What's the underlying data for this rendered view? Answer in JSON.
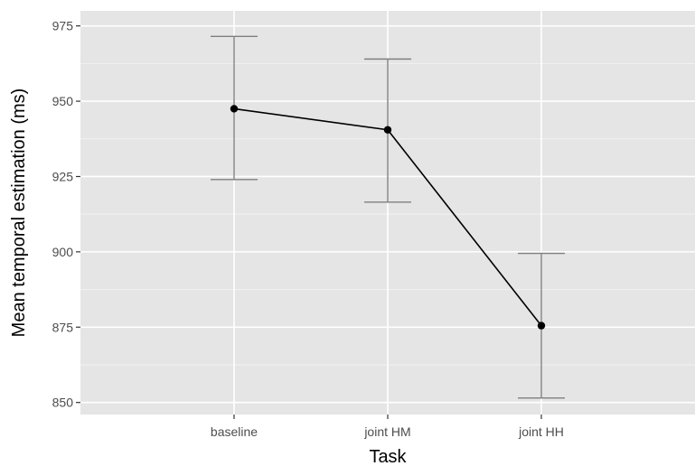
{
  "chart_data": {
    "type": "line",
    "title": "",
    "xlabel": "Task",
    "ylabel": "Mean temporal estimation (ms)",
    "categories": [
      "baseline",
      "joint HM",
      "joint HH"
    ],
    "series": [
      {
        "values": [
          947.5,
          940.5,
          875.5
        ],
        "error_low": [
          924,
          916.5,
          851.5
        ],
        "error_high": [
          971.5,
          964,
          899.5
        ]
      }
    ],
    "ylim": [
      846,
      980
    ],
    "yticks": [
      850,
      875,
      900,
      925,
      950,
      975
    ],
    "grid": true,
    "legend": "none",
    "colors": {
      "panel_background": "#e5e5e5",
      "grid_major": "#ffffff",
      "grid_minor": "#f2f2f2",
      "line": "#000000",
      "points": "#000000",
      "error_bars": "#7f7f7f",
      "tick_text": "#4d4d4d"
    }
  }
}
